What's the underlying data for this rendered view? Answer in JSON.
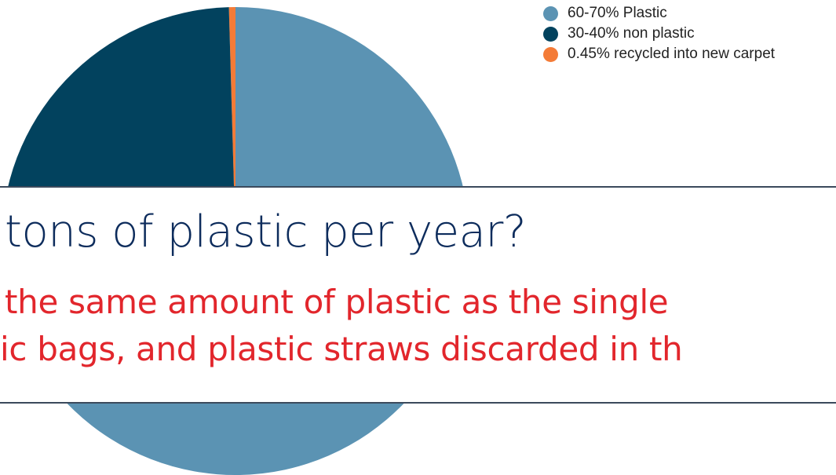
{
  "chart_data": {
    "type": "pie",
    "slices": [
      {
        "label": "60-70% Plastic",
        "value": 74.55,
        "color": "#5b93b3"
      },
      {
        "label": "30-40% non plastic",
        "value": 25.0,
        "color": "#02425e"
      },
      {
        "label": "0.45% recycled into new carpet",
        "value": 0.45,
        "color": "#f47b37"
      }
    ],
    "start_slice": "0.45% recycled into new carpet",
    "legend_position": "top-right"
  },
  "banner": {
    "title": "tons of plastic per year?",
    "line1": "the same amount of plastic as the single",
    "line2": "ic bags, and plastic straws discarded in th"
  }
}
